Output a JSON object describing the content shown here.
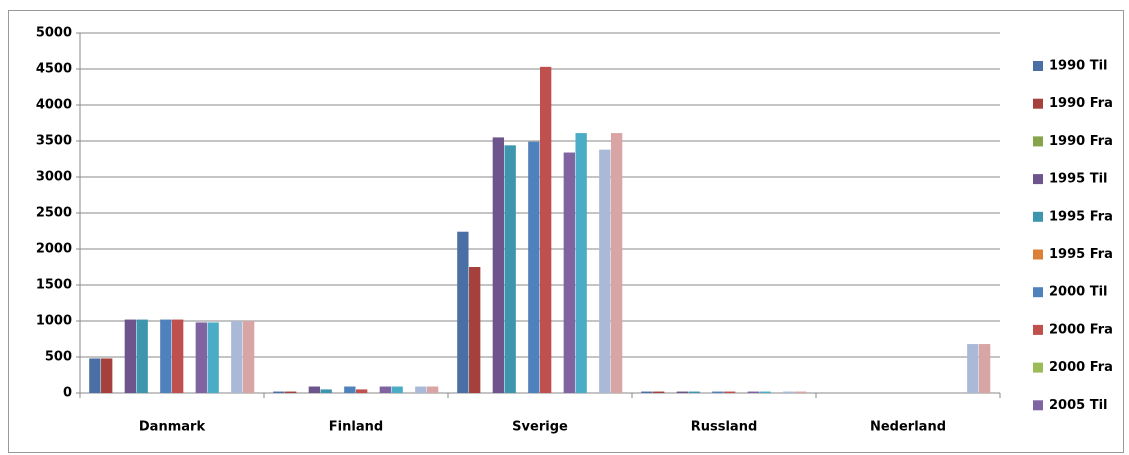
{
  "chart_data": {
    "type": "bar",
    "categories": [
      "Danmark",
      "Finland",
      "Sverige",
      "Russland",
      "Nederland"
    ],
    "ylim": [
      0,
      5000
    ],
    "yticks": [
      0,
      500,
      1000,
      1500,
      2000,
      2500,
      3000,
      3500,
      4000,
      4500,
      5000
    ],
    "grid": true,
    "series": [
      {
        "name": "1990 Til",
        "color": "#4a6fa5",
        "values": [
          480,
          20,
          2240,
          20,
          0
        ]
      },
      {
        "name": "1990 Fra",
        "color": "#a5403c",
        "values": [
          480,
          20,
          1750,
          20,
          0
        ]
      },
      {
        "name": "1990 Fra",
        "color": "#86a44a",
        "values": [
          0,
          0,
          0,
          0,
          0
        ]
      },
      {
        "name": "1995 Til",
        "color": "#6e548d",
        "values": [
          1020,
          90,
          3550,
          20,
          0
        ]
      },
      {
        "name": "1995 Fra",
        "color": "#3d96ae",
        "values": [
          1020,
          50,
          3440,
          20,
          0
        ]
      },
      {
        "name": "1995 Fra",
        "color": "#da8137",
        "values": [
          0,
          0,
          0,
          0,
          0
        ]
      },
      {
        "name": "2000 Til",
        "color": "#4f81bd",
        "values": [
          1020,
          90,
          3490,
          20,
          0
        ]
      },
      {
        "name": "2000 Fra",
        "color": "#c0504d",
        "values": [
          1020,
          50,
          4530,
          20,
          0
        ]
      },
      {
        "name": "2000 Fra",
        "color": "#9bbb59",
        "values": [
          0,
          0,
          0,
          0,
          0
        ]
      },
      {
        "name": "2005 Til",
        "color": "#8064a2",
        "values": [
          980,
          90,
          3340,
          20,
          0
        ]
      },
      {
        "color": "#4bacc6",
        "values": [
          980,
          90,
          3610,
          20,
          0
        ]
      },
      {
        "color": "#f79646",
        "values": [
          0,
          0,
          0,
          0,
          0
        ]
      },
      {
        "color": "#aab9d6",
        "values": [
          1000,
          90,
          3380,
          20,
          680
        ]
      },
      {
        "color": "#d9a5a4",
        "values": [
          1000,
          90,
          3610,
          20,
          680
        ]
      }
    ]
  }
}
